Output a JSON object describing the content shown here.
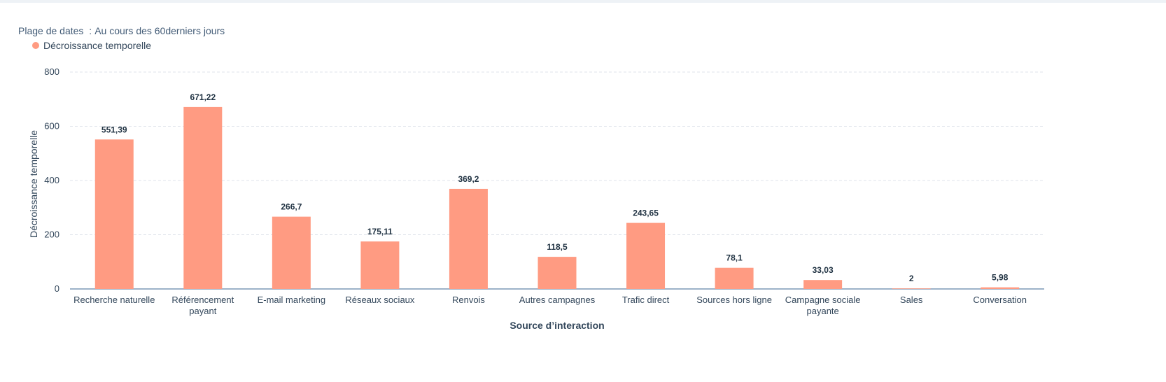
{
  "header": {
    "date_range_label": "Plage de dates",
    "date_range_value": "Au cours des 60derniers jours"
  },
  "colors": {
    "bar": "#ff9b82",
    "axis": "#7c98b6",
    "grid": "#dfe3eb",
    "text": "#33475b",
    "value_label": "#213343"
  },
  "chart_data": {
    "type": "bar",
    "title": "",
    "xlabel": "Source d’interaction",
    "ylabel": "Décroissance temporelle",
    "ylim": [
      0,
      800
    ],
    "yticks": [
      0,
      200,
      400,
      600,
      800
    ],
    "grid": true,
    "legend_position": "top-left",
    "categories": [
      "Recherche naturelle",
      "Référencement payant",
      "E-mail marketing",
      "Réseaux sociaux",
      "Renvois",
      "Autres campagnes",
      "Trafic direct",
      "Sources hors ligne",
      "Campagne sociale payante",
      "Sales",
      "Conversation"
    ],
    "category_lines": [
      [
        "Recherche naturelle"
      ],
      [
        "Référencement",
        "payant"
      ],
      [
        "E-mail marketing"
      ],
      [
        "Réseaux sociaux"
      ],
      [
        "Renvois"
      ],
      [
        "Autres campagnes"
      ],
      [
        "Trafic direct"
      ],
      [
        "Sources hors ligne"
      ],
      [
        "Campagne sociale",
        "payante"
      ],
      [
        "Sales"
      ],
      [
        "Conversation"
      ]
    ],
    "series": [
      {
        "name": "Décroissance temporelle",
        "values": [
          551.39,
          671.22,
          266.7,
          175.11,
          369.2,
          118.5,
          243.65,
          78.1,
          33.03,
          2,
          5.98
        ],
        "labels": [
          "551,39",
          "671,22",
          "266,7",
          "175,11",
          "369,2",
          "118,5",
          "243,65",
          "78,1",
          "33,03",
          "2",
          "5,98"
        ]
      }
    ]
  }
}
